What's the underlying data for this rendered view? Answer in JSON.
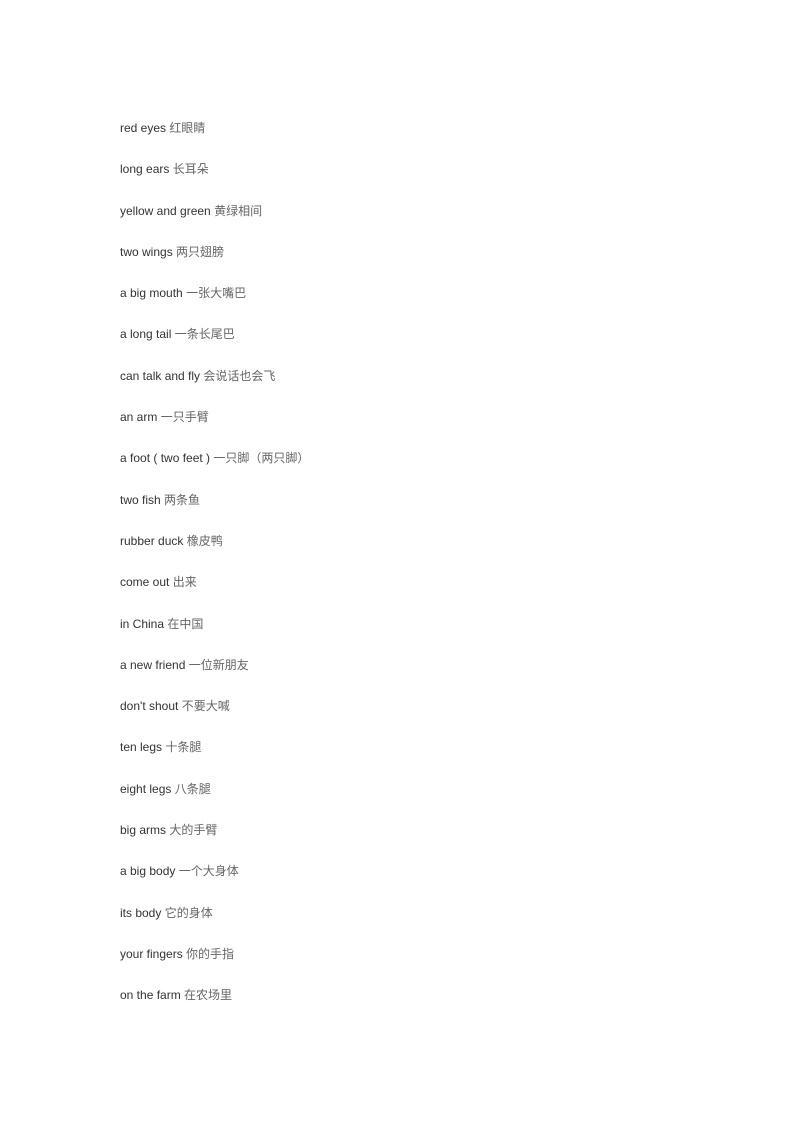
{
  "vocab": [
    {
      "en": "red eyes",
      "zh": "红眼睛"
    },
    {
      "en": "long ears",
      "zh": "长耳朵"
    },
    {
      "en": "yellow and green",
      "zh": "黄绿相间"
    },
    {
      "en": "two wings",
      "zh": "两只翅膀"
    },
    {
      "en": "a big mouth",
      "zh": "一张大嘴巴"
    },
    {
      "en": "a long tail",
      "zh": "一条长尾巴"
    },
    {
      "en": "can talk and fly",
      "zh": "会说话也会飞"
    },
    {
      "en": "an arm",
      "zh": "一只手臂"
    },
    {
      "en": "a foot ( two feet )",
      "zh": "一只脚（两只脚）"
    },
    {
      "en": "two fish",
      "zh": "两条鱼"
    },
    {
      "en": "rubber duck",
      "zh": "橡皮鸭"
    },
    {
      "en": "come out",
      "zh": "出来"
    },
    {
      "en": "in China",
      "zh": "在中国"
    },
    {
      "en": "a new friend",
      "zh": "一位新朋友"
    },
    {
      "en": "don't  shout",
      "zh": "不要大喊"
    },
    {
      "en": "ten  legs",
      "zh": "十条腿"
    },
    {
      "en": "eight legs",
      "zh": "八条腿"
    },
    {
      "en": "big arms",
      "zh": "大的手臂"
    },
    {
      "en": "a big body",
      "zh": "一个大身体"
    },
    {
      "en": "its body",
      "zh": "它的身体"
    },
    {
      "en": "your fingers",
      "zh": "你的手指"
    },
    {
      "en": "on the farm",
      "zh": "在农场里"
    }
  ]
}
